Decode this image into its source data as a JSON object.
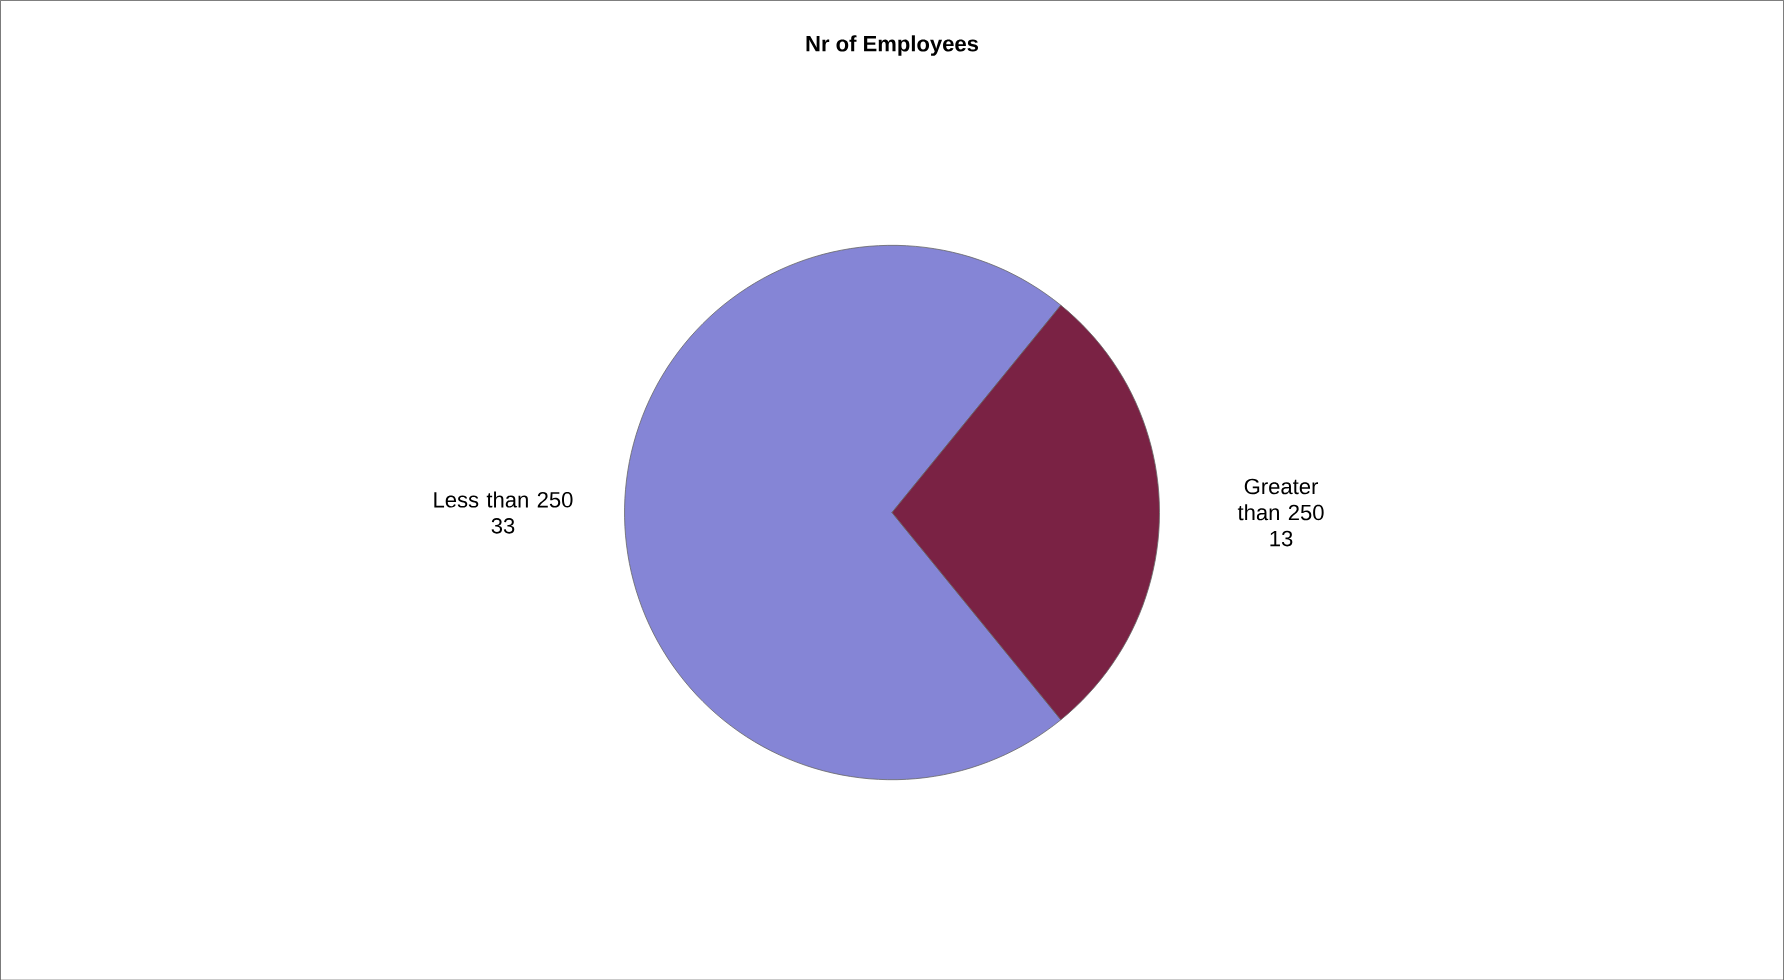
{
  "chart_data": {
    "type": "pie",
    "title": "Nr of Employees",
    "categories": [
      "Less than 250",
      "Greater than 250"
    ],
    "values": [
      33,
      13
    ],
    "colors": [
      "#8585d6",
      "#7a2244"
    ],
    "data_labels": true
  }
}
